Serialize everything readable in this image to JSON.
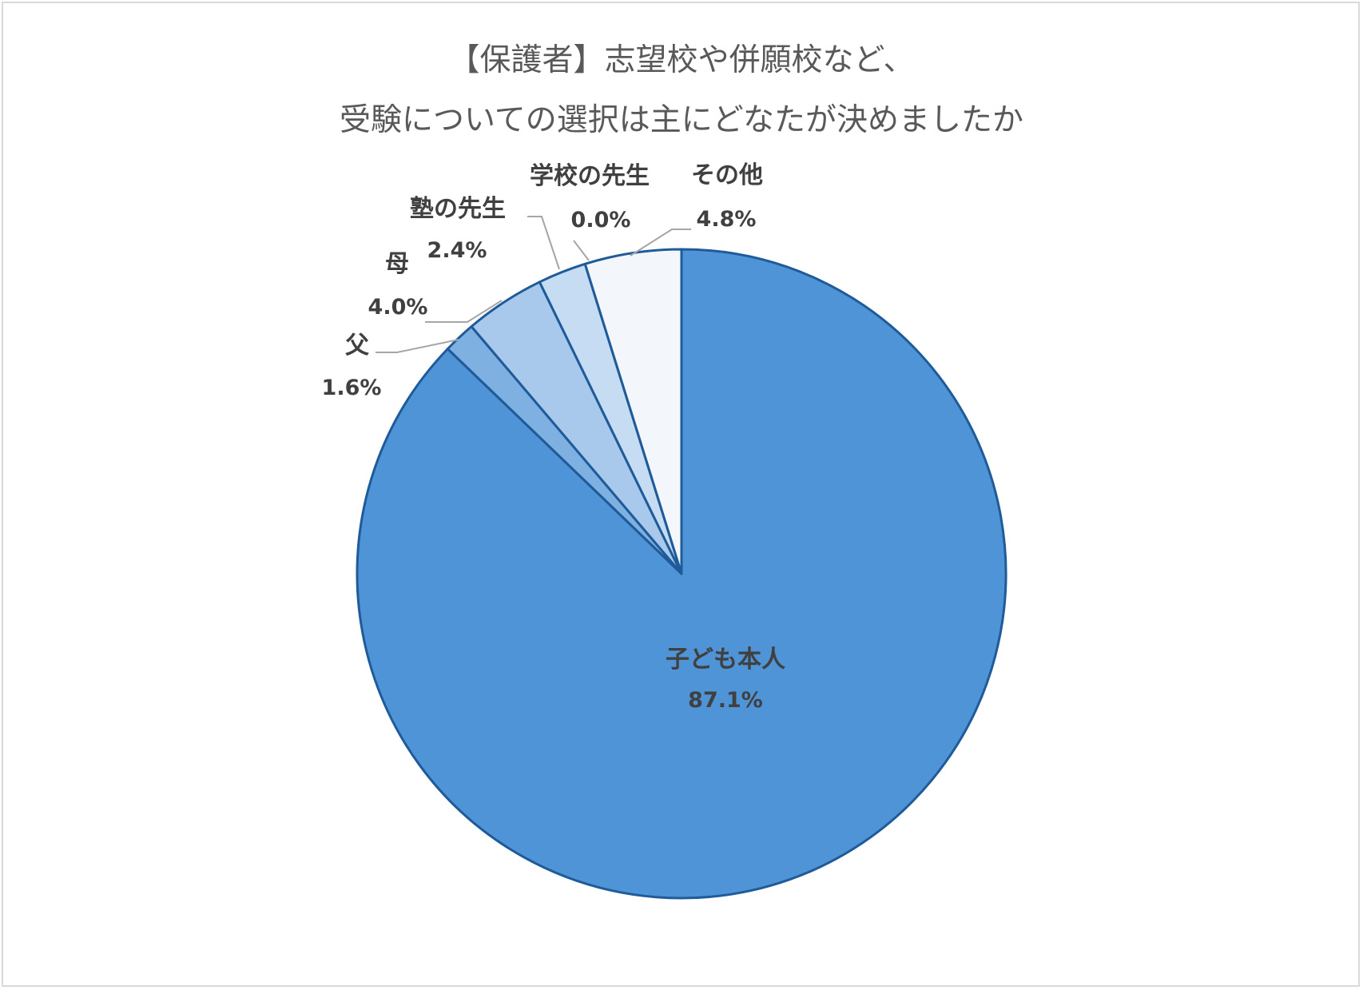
{
  "chart_data": {
    "type": "pie",
    "title_lines": [
      "【保護者】志望校や併願校など、",
      "受験についての選択は主にどなたが決めましたか"
    ],
    "slices": [
      {
        "label": "子ども本人",
        "value": 87.1,
        "value_label": "87.1%",
        "color": "#4e94d6"
      },
      {
        "label": "父",
        "value": 1.6,
        "value_label": "1.6%",
        "color": "#7fb0e2"
      },
      {
        "label": "母",
        "value": 4.0,
        "value_label": "4.0%",
        "color": "#a8c9ec"
      },
      {
        "label": "塾の先生",
        "value": 2.4,
        "value_label": "2.4%",
        "color": "#c6dcf3"
      },
      {
        "label": "学校の先生",
        "value": 0.0,
        "value_label": "0.0%",
        "color": "#dde9f7"
      },
      {
        "label": "その他",
        "value": 4.8,
        "value_label": "4.8%",
        "color": "#f3f7fc"
      }
    ],
    "start_angle": "12 o'clock",
    "direction": "clockwise",
    "slice_border_color": "#1f5b99"
  }
}
